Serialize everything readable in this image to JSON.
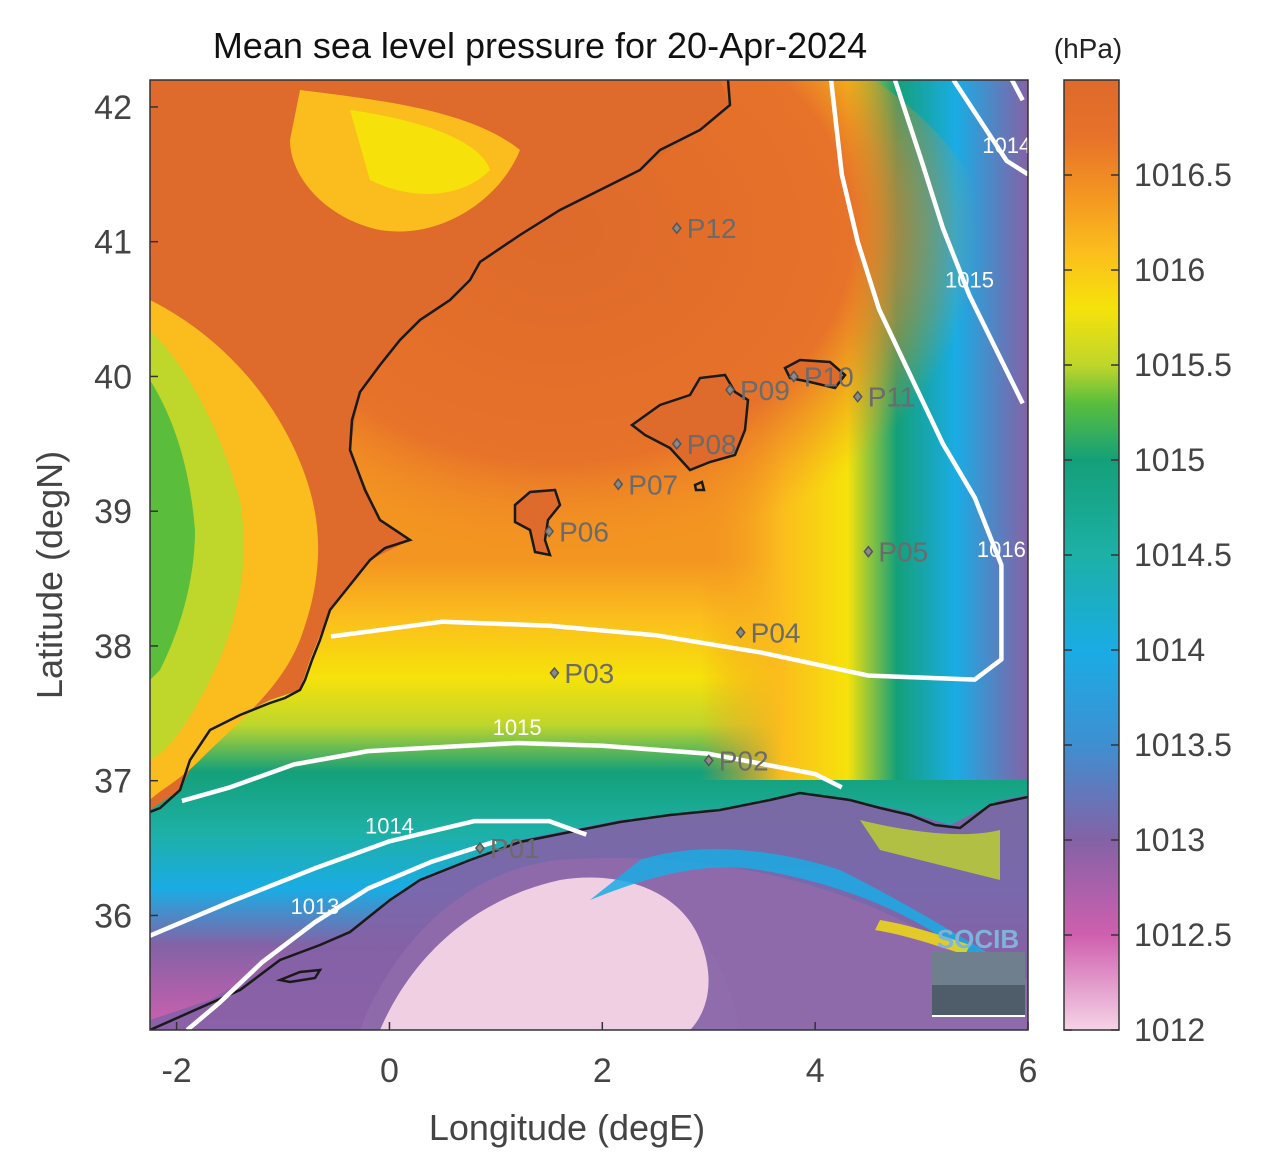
{
  "figure": {
    "title": "Mean sea level pressure for 20-Apr-2024",
    "xlabel": "Longitude (degE)",
    "ylabel": "Latitude (degN)"
  },
  "colorbar": {
    "unit": "(hPa)",
    "range": [
      1012,
      1017
    ],
    "tick_labels": [
      "1016.5",
      "1016",
      "1015.5",
      "1015",
      "1014.5",
      "1014",
      "1013.5",
      "1013",
      "1012.5",
      "1012"
    ],
    "colors": [
      "#f5d3e6",
      "#cf5fae",
      "#8462a6",
      "#3f8fd1",
      "#1aace4",
      "#1db0a6",
      "#14a079",
      "#5abe3c",
      "#bfd62b",
      "#f6e20a",
      "#fbbd1d",
      "#f39521",
      "#e7722a",
      "#de6a2b"
    ]
  },
  "chart_data": {
    "type": "heatmap",
    "title": "Mean sea level pressure for 20-Apr-2024",
    "xlabel": "Longitude (degE)",
    "ylabel": "Latitude (degN)",
    "xlim": [
      -2.25,
      6.0
    ],
    "ylim": [
      35.15,
      42.2
    ],
    "x_ticks": [
      -2,
      0,
      2,
      4,
      6
    ],
    "x_tick_labels": [
      "-2",
      "0",
      "2",
      "4",
      "6"
    ],
    "y_ticks": [
      36,
      37,
      38,
      39,
      40,
      41,
      42
    ],
    "y_tick_labels": [
      "36",
      "37",
      "38",
      "39",
      "40",
      "41",
      "42"
    ],
    "stations": [
      {
        "name": "P01",
        "lon": 0.85,
        "lat": 36.5
      },
      {
        "name": "P02",
        "lon": 3.0,
        "lat": 37.15
      },
      {
        "name": "P03",
        "lon": 1.55,
        "lat": 37.8
      },
      {
        "name": "P04",
        "lon": 3.3,
        "lat": 38.1
      },
      {
        "name": "P05",
        "lon": 4.5,
        "lat": 38.7
      },
      {
        "name": "P06",
        "lon": 1.5,
        "lat": 38.85
      },
      {
        "name": "P07",
        "lon": 2.15,
        "lat": 39.2
      },
      {
        "name": "P08",
        "lon": 2.7,
        "lat": 39.5
      },
      {
        "name": "P09",
        "lon": 3.2,
        "lat": 39.9
      },
      {
        "name": "P10",
        "lon": 3.8,
        "lat": 40.0
      },
      {
        "name": "P11",
        "lon": 4.4,
        "lat": 39.85
      },
      {
        "name": "P12",
        "lon": 2.7,
        "lat": 41.1
      }
    ],
    "contours": [
      {
        "level": "1016",
        "label": "1016",
        "points": [
          [
            -0.55,
            38.07
          ],
          [
            0.5,
            38.18
          ],
          [
            1.5,
            38.15
          ],
          [
            2.5,
            38.08
          ],
          [
            3.5,
            37.95
          ],
          [
            4.5,
            37.78
          ],
          [
            5.5,
            37.75
          ],
          [
            5.75,
            37.9
          ],
          [
            5.75,
            38.6
          ],
          [
            5.5,
            39.1
          ],
          [
            5.2,
            39.5
          ],
          [
            4.9,
            40.0
          ],
          [
            4.6,
            40.5
          ],
          [
            4.4,
            41.0
          ],
          [
            4.25,
            41.5
          ],
          [
            4.15,
            42.2
          ]
        ]
      },
      {
        "level": "1015",
        "label": "1015",
        "points": [
          [
            -1.95,
            36.85
          ],
          [
            -1.5,
            36.95
          ],
          [
            -0.9,
            37.12
          ],
          [
            -0.2,
            37.22
          ],
          [
            0.5,
            37.25
          ],
          [
            1.2,
            37.28
          ],
          [
            2.0,
            37.26
          ],
          [
            3.0,
            37.2
          ],
          [
            4.0,
            37.05
          ],
          [
            4.25,
            36.95
          ]
        ]
      },
      {
        "level": "1015b",
        "label": "1015",
        "points": [
          [
            4.75,
            42.2
          ],
          [
            5.0,
            41.6
          ],
          [
            5.2,
            41.1
          ],
          [
            5.45,
            40.6
          ],
          [
            5.7,
            40.2
          ],
          [
            5.95,
            39.8
          ]
        ]
      },
      {
        "level": "1014",
        "label": "1014",
        "points": [
          [
            -2.25,
            35.85
          ],
          [
            -1.5,
            36.1
          ],
          [
            -0.7,
            36.35
          ],
          [
            0.0,
            36.55
          ],
          [
            0.8,
            36.7
          ],
          [
            1.5,
            36.7
          ],
          [
            1.85,
            36.6
          ]
        ]
      },
      {
        "level": "1014b",
        "label": "1014",
        "points": [
          [
            5.3,
            42.2
          ],
          [
            5.55,
            41.9
          ],
          [
            5.8,
            41.6
          ],
          [
            6.0,
            41.5
          ]
        ]
      },
      {
        "level": "1013",
        "label": "1013",
        "points": [
          [
            -1.9,
            35.15
          ],
          [
            -1.6,
            35.35
          ],
          [
            -1.2,
            35.65
          ],
          [
            -0.7,
            35.95
          ],
          [
            -0.2,
            36.2
          ],
          [
            0.4,
            36.4
          ],
          [
            1.0,
            36.55
          ]
        ]
      },
      {
        "level": "1013b",
        "label": "",
        "points": [
          [
            5.85,
            42.2
          ],
          [
            5.95,
            42.05
          ]
        ]
      }
    ]
  },
  "logo": {
    "text": "SOCIB"
  }
}
